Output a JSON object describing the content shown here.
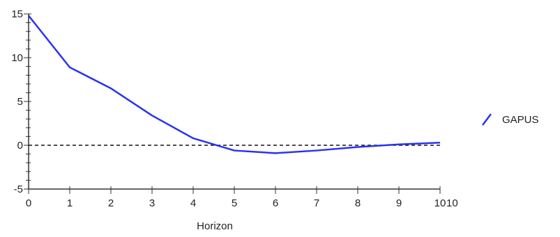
{
  "chart_data": {
    "type": "line",
    "title": "",
    "xlabel": "Horizon",
    "ylabel": "",
    "x": [
      0,
      1,
      2,
      3,
      4,
      5,
      6,
      7,
      8,
      9,
      10
    ],
    "xticks": [
      "0",
      "1",
      "2",
      "3",
      "4",
      "5",
      "6",
      "7",
      "8",
      "9",
      "10"
    ],
    "extra_xtick": "10",
    "yticks": [
      "-5",
      "0",
      "5",
      "10",
      "15"
    ],
    "ylim": [
      -5,
      15
    ],
    "xlim": [
      0,
      10
    ],
    "series": [
      {
        "name": "GAPUS",
        "values": [
          14.8,
          8.9,
          6.5,
          3.4,
          0.8,
          -0.6,
          -0.9,
          -0.6,
          -0.2,
          0.1,
          0.3
        ]
      }
    ],
    "reference_line": {
      "y": 0,
      "style": "dashed"
    },
    "legend_position": "right",
    "grid": false,
    "colors": {
      "series": "#2a32f0",
      "axis": "#333333",
      "reference": "#111111"
    }
  }
}
